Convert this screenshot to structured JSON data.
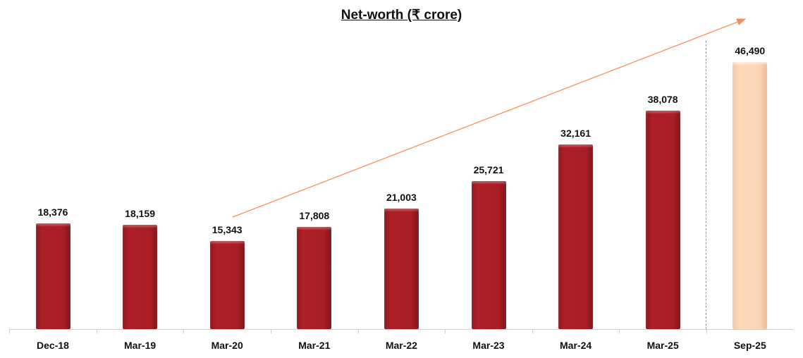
{
  "title": "Net-worth (₹ crore)",
  "colors": {
    "historical": "#a91e25",
    "latest": "#fcd5b5",
    "trend_arrow": "#f0925a"
  },
  "chart_data": {
    "type": "bar",
    "title": "Net-worth (₹ crore)",
    "xlabel": "",
    "ylabel": "",
    "categories": [
      "Dec-18",
      "Mar-19",
      "Mar-20",
      "Mar-21",
      "Mar-22",
      "Mar-23",
      "Mar-24",
      "Mar-25",
      "Sep-25"
    ],
    "values": [
      18376,
      18159,
      15343,
      17808,
      21003,
      25721,
      32161,
      38078,
      46490
    ],
    "value_labels": [
      "18,376",
      "18,159",
      "15,343",
      "17,808",
      "21,003",
      "25,721",
      "32,161",
      "38,078",
      "46,490"
    ],
    "ylim": [
      0,
      50000
    ],
    "grid": false,
    "legend": null,
    "annotations": [
      "Upward trend arrow from Mar-20 to Sep-25",
      "Dashed vertical separator before Sep-25"
    ],
    "highlighted_category": "Sep-25"
  }
}
